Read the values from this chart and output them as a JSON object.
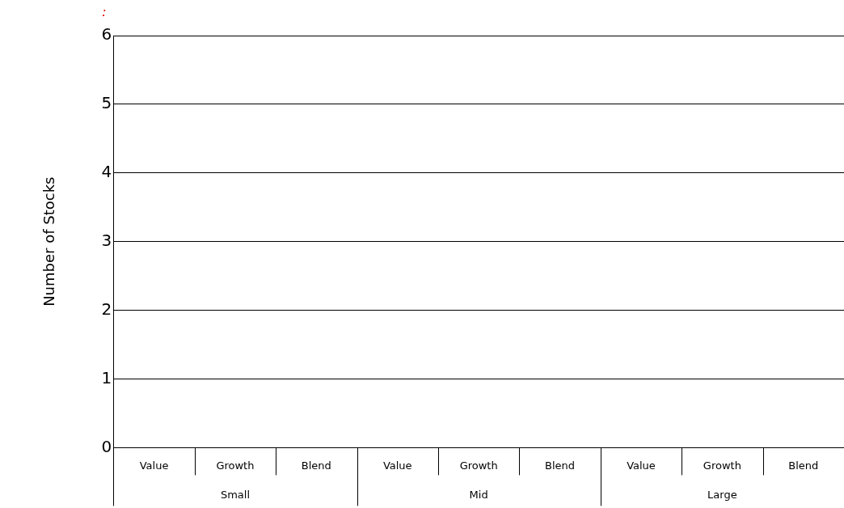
{
  "chart_data": {
    "type": "bar",
    "title": ":",
    "ylabel": "Number of Stocks",
    "categories": [
      "Value",
      "Growth",
      "Blend",
      "Value",
      "Growth",
      "Blend",
      "Value",
      "Growth",
      "Blend"
    ],
    "values": [
      0,
      0,
      0,
      0,
      0,
      0,
      0,
      0,
      0
    ],
    "ylim": [
      0,
      6
    ],
    "yticks": [
      0,
      1,
      2,
      3,
      4,
      5,
      6
    ],
    "grid": "y",
    "annotations": [
      "Small",
      "Mid",
      "Large"
    ]
  }
}
